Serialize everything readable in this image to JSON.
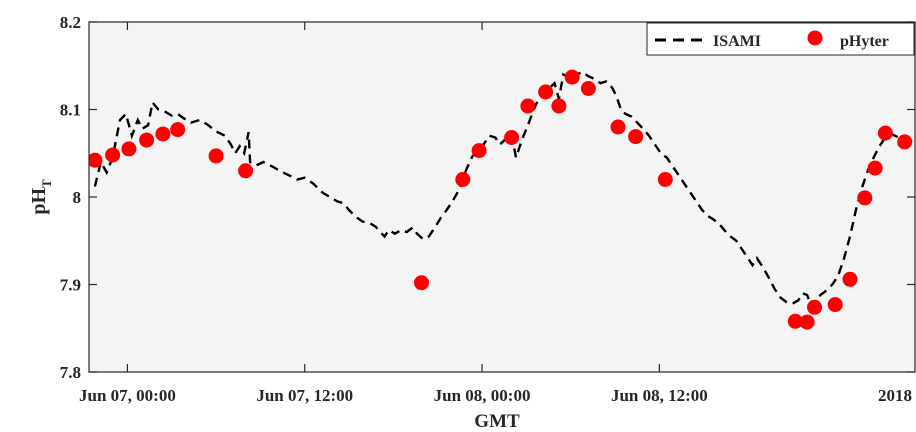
{
  "chart_data": {
    "type": "line",
    "xlabel": "GMT",
    "ylabel": "pH",
    "ylabel_sub": "T",
    "year_label": "2018",
    "x_unit": "hours since Jun 07, 00:00 GMT",
    "xlim": [
      -2.6,
      53.3
    ],
    "ylim": [
      7.8,
      8.2
    ],
    "y_ticks": [
      7.8,
      7.9,
      8.0,
      8.1,
      8.2
    ],
    "y_tick_labels": [
      "7.8",
      "7.9",
      "8",
      "8.1",
      "8.2"
    ],
    "x_ticks": [
      0,
      12,
      24,
      36
    ],
    "x_tick_labels": [
      "Jun 07, 00:00",
      "Jun 07, 12:00",
      "Jun 08, 00:00",
      "Jun 08, 12:00"
    ],
    "legend_position": "top-right",
    "grid": false,
    "background": "#f4f4f4",
    "series": [
      {
        "name": "ISAMI",
        "style": "dashed-line",
        "color": "#000000",
        "points": [
          [
            -2.2,
            8.012
          ],
          [
            -1.8,
            8.04
          ],
          [
            -1.4,
            8.028
          ],
          [
            -1.0,
            8.045
          ],
          [
            -0.5,
            8.088
          ],
          [
            -0.1,
            8.095
          ],
          [
            0.3,
            8.07
          ],
          [
            0.7,
            8.088
          ],
          [
            1.0,
            8.078
          ],
          [
            1.4,
            8.082
          ],
          [
            1.7,
            8.108
          ],
          [
            2.1,
            8.1
          ],
          [
            2.6,
            8.097
          ],
          [
            3.0,
            8.093
          ],
          [
            3.4,
            8.095
          ],
          [
            3.8,
            8.09
          ],
          [
            4.3,
            8.085
          ],
          [
            4.9,
            8.088
          ],
          [
            5.4,
            8.083
          ],
          [
            6.0,
            8.075
          ],
          [
            6.6,
            8.07
          ],
          [
            7.0,
            8.06
          ],
          [
            7.3,
            8.05
          ],
          [
            7.6,
            8.058
          ],
          [
            7.9,
            8.05
          ],
          [
            8.2,
            8.074
          ],
          [
            8.3,
            8.04
          ],
          [
            8.7,
            8.036
          ],
          [
            9.2,
            8.04
          ],
          [
            9.8,
            8.035
          ],
          [
            10.3,
            8.03
          ],
          [
            10.9,
            8.025
          ],
          [
            11.5,
            8.02
          ],
          [
            12.0,
            8.022
          ],
          [
            12.6,
            8.015
          ],
          [
            13.2,
            8.005
          ],
          [
            13.7,
            8.0
          ],
          [
            14.2,
            7.995
          ],
          [
            14.6,
            7.993
          ],
          [
            15.0,
            7.985
          ],
          [
            15.4,
            7.978
          ],
          [
            15.9,
            7.972
          ],
          [
            16.4,
            7.97
          ],
          [
            16.8,
            7.966
          ],
          [
            17.1,
            7.96
          ],
          [
            17.4,
            7.955
          ],
          [
            17.7,
            7.962
          ],
          [
            18.1,
            7.958
          ],
          [
            18.5,
            7.962
          ],
          [
            18.9,
            7.96
          ],
          [
            19.3,
            7.965
          ],
          [
            19.6,
            7.958
          ],
          [
            20.0,
            7.952
          ],
          [
            20.4,
            7.955
          ],
          [
            20.8,
            7.965
          ],
          [
            21.2,
            7.976
          ],
          [
            21.6,
            7.985
          ],
          [
            22.0,
            7.995
          ],
          [
            22.5,
            8.01
          ],
          [
            22.9,
            8.03
          ],
          [
            23.3,
            8.045
          ],
          [
            23.7,
            8.055
          ],
          [
            24.1,
            8.06
          ],
          [
            24.5,
            8.07
          ],
          [
            24.9,
            8.068
          ],
          [
            25.2,
            8.06
          ],
          [
            25.6,
            8.066
          ],
          [
            26.0,
            8.072
          ],
          [
            26.3,
            8.045
          ],
          [
            26.7,
            8.065
          ],
          [
            27.1,
            8.082
          ],
          [
            27.5,
            8.1
          ],
          [
            27.9,
            8.115
          ],
          [
            28.3,
            8.122
          ],
          [
            28.6,
            8.125
          ],
          [
            28.9,
            8.13
          ],
          [
            29.2,
            8.112
          ],
          [
            29.5,
            8.14
          ],
          [
            29.8,
            8.138
          ],
          [
            30.1,
            8.145
          ],
          [
            30.4,
            8.14
          ],
          [
            30.8,
            8.143
          ],
          [
            31.2,
            8.138
          ],
          [
            31.6,
            8.135
          ],
          [
            32.0,
            8.13
          ],
          [
            32.4,
            8.132
          ],
          [
            32.8,
            8.125
          ],
          [
            33.1,
            8.115
          ],
          [
            33.4,
            8.1
          ],
          [
            33.7,
            8.095
          ],
          [
            34.1,
            8.092
          ],
          [
            34.5,
            8.085
          ],
          [
            34.9,
            8.078
          ],
          [
            35.3,
            8.07
          ],
          [
            35.7,
            8.06
          ],
          [
            36.1,
            8.05
          ],
          [
            36.5,
            8.045
          ],
          [
            36.9,
            8.035
          ],
          [
            37.3,
            8.025
          ],
          [
            37.7,
            8.015
          ],
          [
            38.1,
            8.005
          ],
          [
            38.5,
            7.995
          ],
          [
            38.9,
            7.985
          ],
          [
            39.3,
            7.978
          ],
          [
            39.6,
            7.975
          ],
          [
            40.0,
            7.97
          ],
          [
            40.4,
            7.962
          ],
          [
            40.8,
            7.955
          ],
          [
            41.2,
            7.95
          ],
          [
            41.6,
            7.94
          ],
          [
            42.0,
            7.93
          ],
          [
            42.3,
            7.922
          ],
          [
            42.6,
            7.93
          ],
          [
            43.0,
            7.92
          ],
          [
            43.4,
            7.908
          ],
          [
            43.8,
            7.895
          ],
          [
            44.2,
            7.885
          ],
          [
            44.6,
            7.88
          ],
          [
            45.0,
            7.878
          ],
          [
            45.4,
            7.882
          ],
          [
            45.7,
            7.89
          ],
          [
            46.0,
            7.888
          ],
          [
            46.3,
            7.875
          ],
          [
            46.6,
            7.878
          ],
          [
            46.9,
            7.888
          ],
          [
            47.3,
            7.893
          ],
          [
            47.7,
            7.9
          ],
          [
            48.1,
            7.91
          ],
          [
            48.5,
            7.93
          ],
          [
            48.9,
            7.955
          ],
          [
            49.3,
            7.985
          ],
          [
            49.7,
            8.01
          ],
          [
            50.1,
            8.03
          ],
          [
            50.5,
            8.045
          ],
          [
            50.9,
            8.058
          ],
          [
            51.3,
            8.068
          ],
          [
            51.7,
            8.072
          ],
          [
            52.2,
            8.068
          ],
          [
            52.8,
            8.065
          ],
          [
            53.3,
            8.063
          ]
        ]
      },
      {
        "name": "pHyter",
        "style": "markers",
        "color": "#ff0000",
        "points": [
          [
            -2.2,
            8.042
          ],
          [
            -1.0,
            8.048
          ],
          [
            0.1,
            8.055
          ],
          [
            1.3,
            8.065
          ],
          [
            2.4,
            8.072
          ],
          [
            3.4,
            8.077
          ],
          [
            6.0,
            8.047
          ],
          [
            8.0,
            8.03
          ],
          [
            19.9,
            7.902
          ],
          [
            22.7,
            8.02
          ],
          [
            23.8,
            8.053
          ],
          [
            26.0,
            8.068
          ],
          [
            27.1,
            8.104
          ],
          [
            28.3,
            8.12
          ],
          [
            29.2,
            8.104
          ],
          [
            30.1,
            8.137
          ],
          [
            31.2,
            8.124
          ],
          [
            33.2,
            8.08
          ],
          [
            34.4,
            8.069
          ],
          [
            36.4,
            8.02
          ],
          [
            45.2,
            7.858
          ],
          [
            46.0,
            7.857
          ],
          [
            46.5,
            7.874
          ],
          [
            47.9,
            7.877
          ],
          [
            48.9,
            7.906
          ],
          [
            49.9,
            7.999
          ],
          [
            50.6,
            8.033
          ],
          [
            51.3,
            8.073
          ],
          [
            52.6,
            8.063
          ]
        ]
      }
    ]
  }
}
